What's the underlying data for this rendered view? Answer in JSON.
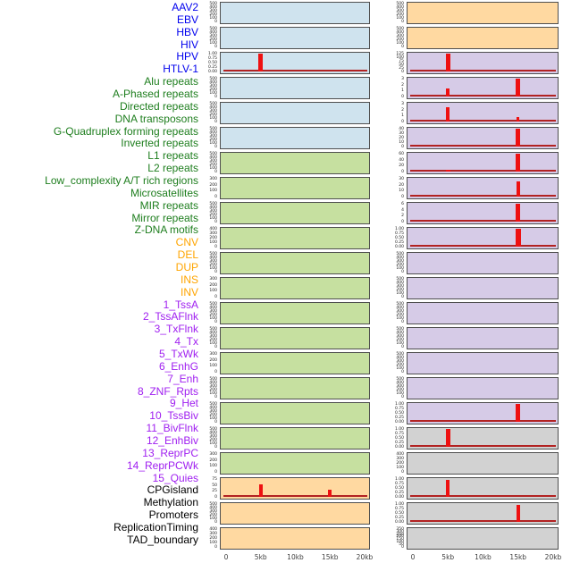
{
  "figure_background": "#ffffff",
  "palette": {
    "panel_border": "#4f4f4f",
    "spike_red": "#ee1111",
    "baseline_dark_red": "#b22222",
    "tick_text": "#1a1a1a",
    "axis_text": "#404040",
    "group_label_colors": {
      "virus": "#0000ee",
      "repeat": "#1e7e1e",
      "sv": "#ffa500",
      "chromatin": "#a020f0",
      "other": "#000000"
    },
    "group_panel_colors": {
      "virus": "#cfe3ee",
      "repeat": "#c6e0a0",
      "sv": "#ffd9a1",
      "chromatin": "#d6cbe7",
      "other": "#d2d2d2"
    }
  },
  "chart_data": {
    "type": "bar",
    "description": "44 genomic feature density tracks in two columns of 22 mini-panels; red bars mark enrichment peaks along a 0-20kb window; dark red line is the near-zero baseline signal.",
    "x_axis": {
      "tick_labels": [
        "0",
        "5kb",
        "10kb",
        "15kb",
        "20kb"
      ],
      "tick_kb": [
        0,
        5,
        10,
        15,
        20
      ],
      "range_kb": [
        0,
        20
      ]
    },
    "columns": 2,
    "rows_per_column": 22,
    "tracks": [
      {
        "label": "AAV2",
        "group": "virus",
        "column": "left",
        "row": 0,
        "yticks": [
          "500",
          "400",
          "300",
          "200",
          "100",
          "0"
        ],
        "baseline": false,
        "spikes": []
      },
      {
        "label": "EBV",
        "group": "virus",
        "column": "left",
        "row": 1,
        "yticks": [
          "500",
          "400",
          "300",
          "200",
          "100",
          "0"
        ],
        "baseline": false,
        "spikes": []
      },
      {
        "label": "HBV",
        "group": "virus",
        "column": "left",
        "row": 2,
        "yticks": [
          "1.00",
          "0.75",
          "0.50",
          "0.25",
          "0.00"
        ],
        "baseline": true,
        "spikes": [
          {
            "kb": 5,
            "frac": 1.0,
            "w": 5
          }
        ]
      },
      {
        "label": "HIV",
        "group": "virus",
        "column": "left",
        "row": 3,
        "yticks": [
          "500",
          "400",
          "300",
          "200",
          "100",
          "0"
        ],
        "baseline": false,
        "spikes": []
      },
      {
        "label": "HPV",
        "group": "virus",
        "column": "left",
        "row": 4,
        "yticks": [
          "500",
          "400",
          "300",
          "200",
          "100",
          "0"
        ],
        "baseline": false,
        "spikes": []
      },
      {
        "label": "HTLV-1",
        "group": "virus",
        "column": "left",
        "row": 5,
        "yticks": [
          "500",
          "400",
          "300",
          "200",
          "100",
          "0"
        ],
        "baseline": false,
        "spikes": []
      },
      {
        "label": "Alu repeats",
        "group": "repeat",
        "column": "left",
        "row": 6,
        "yticks": [
          "500",
          "400",
          "300",
          "200",
          "100",
          "0"
        ],
        "baseline": false,
        "spikes": []
      },
      {
        "label": "A-Phased repeats",
        "group": "repeat",
        "column": "left",
        "row": 7,
        "yticks": [
          "300",
          "200",
          "100",
          "0"
        ],
        "baseline": false,
        "spikes": []
      },
      {
        "label": "Directed repeats",
        "group": "repeat",
        "column": "left",
        "row": 8,
        "yticks": [
          "500",
          "400",
          "300",
          "200",
          "100",
          "0"
        ],
        "baseline": false,
        "spikes": []
      },
      {
        "label": "DNA transposons",
        "group": "repeat",
        "column": "left",
        "row": 9,
        "yticks": [
          "400",
          "300",
          "200",
          "100",
          "0"
        ],
        "baseline": false,
        "spikes": []
      },
      {
        "label": "G-Quadruplex forming repeats",
        "group": "repeat",
        "column": "left",
        "row": 10,
        "yticks": [
          "500",
          "400",
          "300",
          "200",
          "100",
          "0"
        ],
        "baseline": false,
        "spikes": []
      },
      {
        "label": "Inverted repeats",
        "group": "repeat",
        "column": "left",
        "row": 11,
        "yticks": [
          "300",
          "200",
          "100",
          "0"
        ],
        "baseline": false,
        "spikes": []
      },
      {
        "label": "L1 repeats",
        "group": "repeat",
        "column": "left",
        "row": 12,
        "yticks": [
          "500",
          "400",
          "300",
          "200",
          "100",
          "0"
        ],
        "baseline": false,
        "spikes": []
      },
      {
        "label": "L2 repeats",
        "group": "repeat",
        "column": "left",
        "row": 13,
        "yticks": [
          "500",
          "400",
          "300",
          "200",
          "100",
          "0"
        ],
        "baseline": false,
        "spikes": []
      },
      {
        "label": "Low_complexity A/T rich regions",
        "group": "repeat",
        "column": "left",
        "row": 14,
        "yticks": [
          "300",
          "200",
          "100",
          "0"
        ],
        "baseline": false,
        "spikes": []
      },
      {
        "label": "Microsatellites",
        "group": "repeat",
        "column": "left",
        "row": 15,
        "yticks": [
          "500",
          "400",
          "300",
          "200",
          "100",
          "0"
        ],
        "baseline": false,
        "spikes": []
      },
      {
        "label": "MIR repeats",
        "group": "repeat",
        "column": "left",
        "row": 16,
        "yticks": [
          "500",
          "400",
          "300",
          "200",
          "100",
          "0"
        ],
        "baseline": false,
        "spikes": []
      },
      {
        "label": "Mirror repeats",
        "group": "repeat",
        "column": "left",
        "row": 17,
        "yticks": [
          "500",
          "400",
          "300",
          "200",
          "100",
          "0"
        ],
        "baseline": false,
        "spikes": []
      },
      {
        "label": "Z-DNA motifs",
        "group": "repeat",
        "column": "left",
        "row": 18,
        "yticks": [
          "300",
          "200",
          "100",
          "0"
        ],
        "baseline": false,
        "spikes": []
      },
      {
        "label": "CNV",
        "group": "sv",
        "column": "left",
        "row": 19,
        "yticks": [
          "75",
          "50",
          "25",
          "0"
        ],
        "baseline": true,
        "spikes": [
          {
            "kb": 5,
            "frac": 0.72,
            "w": 4
          },
          {
            "kb": 15,
            "frac": 0.4,
            "w": 4
          }
        ]
      },
      {
        "label": "DEL",
        "group": "sv",
        "column": "left",
        "row": 20,
        "yticks": [
          "500",
          "400",
          "300",
          "200",
          "100",
          "0"
        ],
        "baseline": false,
        "spikes": []
      },
      {
        "label": "DUP",
        "group": "sv",
        "column": "left",
        "row": 21,
        "yticks": [
          "400",
          "300",
          "200",
          "100",
          "0"
        ],
        "baseline": false,
        "spikes": []
      },
      {
        "label": "INS",
        "group": "sv",
        "column": "right",
        "row": 0,
        "yticks": [
          "500",
          "400",
          "300",
          "200",
          "100",
          "0"
        ],
        "baseline": false,
        "spikes": []
      },
      {
        "label": "INV",
        "group": "sv",
        "column": "right",
        "row": 1,
        "yticks": [
          "500",
          "400",
          "300",
          "200",
          "100",
          "0"
        ],
        "baseline": false,
        "spikes": []
      },
      {
        "label": "1_TssA",
        "group": "chromatin",
        "column": "right",
        "row": 2,
        "yticks": [
          "125",
          "100",
          "75",
          "50",
          "25",
          "0"
        ],
        "baseline": true,
        "spikes": [
          {
            "kb": 5,
            "frac": 1.0,
            "w": 5
          }
        ]
      },
      {
        "label": "2_TssAFlnk",
        "group": "chromatin",
        "column": "right",
        "row": 3,
        "yticks": [
          "3",
          "2",
          "1",
          "0"
        ],
        "baseline": true,
        "spikes": [
          {
            "kb": 5,
            "frac": 0.45,
            "w": 4
          },
          {
            "kb": 15,
            "frac": 1.0,
            "w": 5
          }
        ]
      },
      {
        "label": "3_TxFlnk",
        "group": "chromatin",
        "column": "right",
        "row": 4,
        "yticks": [
          "3",
          "2",
          "1",
          "0"
        ],
        "baseline": true,
        "spikes": [
          {
            "kb": 5,
            "frac": 0.78,
            "w": 4
          },
          {
            "kb": 15,
            "frac": 0.25,
            "w": 3
          }
        ]
      },
      {
        "label": "4_Tx",
        "group": "chromatin",
        "column": "right",
        "row": 5,
        "yticks": [
          "40",
          "30",
          "20",
          "10",
          "0"
        ],
        "baseline": true,
        "spikes": [
          {
            "kb": 15,
            "frac": 1.0,
            "w": 5
          }
        ]
      },
      {
        "label": "5_TxWk",
        "group": "chromatin",
        "column": "right",
        "row": 6,
        "yticks": [
          "60",
          "40",
          "20",
          "0"
        ],
        "baseline": true,
        "spikes": [
          {
            "kb": 5,
            "frac": 0.12,
            "w": 5
          },
          {
            "kb": 15,
            "frac": 1.0,
            "w": 5
          }
        ]
      },
      {
        "label": "6_EnhG",
        "group": "chromatin",
        "column": "right",
        "row": 7,
        "yticks": [
          "30",
          "20",
          "10",
          "0"
        ],
        "baseline": true,
        "spikes": [
          {
            "kb": 15,
            "frac": 0.85,
            "w": 4
          }
        ]
      },
      {
        "label": "7_Enh",
        "group": "chromatin",
        "column": "right",
        "row": 8,
        "yticks": [
          "6",
          "4",
          "2",
          "0"
        ],
        "baseline": true,
        "spikes": [
          {
            "kb": 15,
            "frac": 1.0,
            "w": 5
          }
        ]
      },
      {
        "label": "8_ZNF_Rpts",
        "group": "chromatin",
        "column": "right",
        "row": 9,
        "yticks": [
          "1.00",
          "0.75",
          "0.50",
          "0.25",
          "0.00"
        ],
        "baseline": true,
        "spikes": [
          {
            "kb": 15,
            "frac": 1.0,
            "w": 6
          }
        ]
      },
      {
        "label": "9_Het",
        "group": "chromatin",
        "column": "right",
        "row": 10,
        "yticks": [
          "500",
          "400",
          "300",
          "200",
          "100",
          "0"
        ],
        "baseline": false,
        "spikes": []
      },
      {
        "label": "10_TssBiv",
        "group": "chromatin",
        "column": "right",
        "row": 11,
        "yticks": [
          "500",
          "400",
          "300",
          "200",
          "100",
          "0"
        ],
        "baseline": false,
        "spikes": []
      },
      {
        "label": "11_BivFlnk",
        "group": "chromatin",
        "column": "right",
        "row": 12,
        "yticks": [
          "500",
          "400",
          "300",
          "200",
          "100",
          "0"
        ],
        "baseline": false,
        "spikes": []
      },
      {
        "label": "12_EnhBiv",
        "group": "chromatin",
        "column": "right",
        "row": 13,
        "yticks": [
          "500",
          "400",
          "300",
          "200",
          "100",
          "0"
        ],
        "baseline": false,
        "spikes": []
      },
      {
        "label": "13_ReprPC",
        "group": "chromatin",
        "column": "right",
        "row": 14,
        "yticks": [
          "500",
          "400",
          "300",
          "200",
          "100",
          "0"
        ],
        "baseline": false,
        "spikes": []
      },
      {
        "label": "14_ReprPCWk",
        "group": "chromatin",
        "column": "right",
        "row": 15,
        "yticks": [
          "500",
          "400",
          "300",
          "200",
          "100",
          "0"
        ],
        "baseline": false,
        "spikes": []
      },
      {
        "label": "15_Quies",
        "group": "chromatin",
        "column": "right",
        "row": 16,
        "yticks": [
          "1.00",
          "0.75",
          "0.50",
          "0.25",
          "0.00"
        ],
        "baseline": true,
        "spikes": [
          {
            "kb": 15,
            "frac": 1.0,
            "w": 5
          }
        ]
      },
      {
        "label": "CPGisland",
        "group": "other",
        "column": "right",
        "row": 17,
        "yticks": [
          "1.00",
          "0.75",
          "0.50",
          "0.25",
          "0.00"
        ],
        "baseline": true,
        "spikes": [
          {
            "kb": 5,
            "frac": 1.0,
            "w": 5
          }
        ]
      },
      {
        "label": "Methylation",
        "group": "other",
        "column": "right",
        "row": 18,
        "yticks": [
          "400",
          "300",
          "200",
          "100",
          "0"
        ],
        "baseline": false,
        "spikes": []
      },
      {
        "label": "Promoters",
        "group": "other",
        "column": "right",
        "row": 19,
        "yticks": [
          "1.00",
          "0.75",
          "0.50",
          "0.25",
          "0.00"
        ],
        "baseline": true,
        "spikes": [
          {
            "kb": 5,
            "frac": 0.95,
            "w": 4
          }
        ]
      },
      {
        "label": "ReplicationTiming",
        "group": "other",
        "column": "right",
        "row": 20,
        "yticks": [
          "1.00",
          "0.75",
          "0.50",
          "0.25",
          "0.00"
        ],
        "baseline": true,
        "spikes": [
          {
            "kb": 15,
            "frac": 0.95,
            "w": 4
          }
        ]
      },
      {
        "label": "TAD_boundary",
        "group": "other",
        "column": "right",
        "row": 21,
        "yticks": [
          "350",
          "300",
          "250",
          "200",
          "150",
          "100",
          "50",
          "0"
        ],
        "baseline": false,
        "spikes": []
      }
    ]
  }
}
